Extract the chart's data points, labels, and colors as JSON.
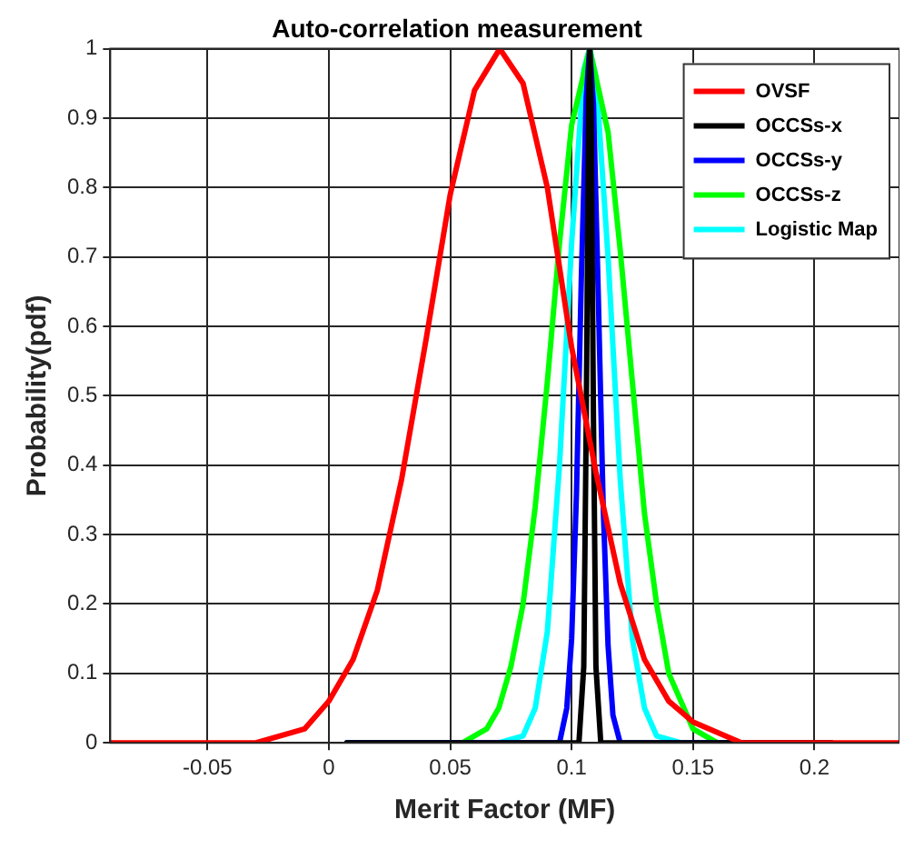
{
  "chart_data": {
    "type": "line",
    "title": "Auto-correlation measurement",
    "xlabel": "Merit Factor (MF)",
    "ylabel": "Probability(pdf)",
    "xlim": [
      -0.09,
      0.235
    ],
    "xticks": [
      -0.05,
      0,
      0.05,
      0.1,
      0.15,
      0.2
    ],
    "ylim": [
      0,
      1
    ],
    "yticks": [
      0,
      0.1,
      0.2,
      0.3,
      0.4,
      0.5,
      0.6,
      0.7,
      0.8,
      0.9,
      1
    ],
    "grid": true,
    "legend": "top right",
    "marker": "none",
    "line_style": "solid",
    "series": [
      {
        "name": "OVSF",
        "color": "#ff0000",
        "x": [
          -0.09,
          -0.05,
          -0.03,
          -0.01,
          0,
          0.01,
          0.02,
          0.03,
          0.04,
          0.05,
          0.06,
          0.0704,
          0.08,
          0.09,
          0.1,
          0.11,
          0.12,
          0.13,
          0.14,
          0.15,
          0.17,
          0.2,
          0.235
        ],
        "values": [
          0,
          0,
          0,
          0.02,
          0.06,
          0.12,
          0.22,
          0.38,
          0.58,
          0.79,
          0.94,
          1,
          0.95,
          0.8,
          0.57,
          0.39,
          0.23,
          0.12,
          0.06,
          0.03,
          0,
          0,
          0
        ]
      },
      {
        "name": "OCCSs-x",
        "color": "#000000",
        "x": [
          0.0074,
          0.103,
          0.105,
          0.106,
          0.107,
          0.1075,
          0.108,
          0.109,
          0.11,
          0.112,
          0.207
        ],
        "values": [
          0,
          0,
          0.11,
          0.46,
          0.92,
          1,
          0.92,
          0.46,
          0.11,
          0,
          0
        ]
      },
      {
        "name": "OCCSs-y",
        "color": "#0000ff",
        "x": [
          0.0074,
          0.095,
          0.098,
          0.1,
          0.102,
          0.104,
          0.106,
          0.1074,
          0.109,
          0.111,
          0.113,
          0.115,
          0.117,
          0.12,
          0.207
        ],
        "values": [
          0,
          0,
          0.05,
          0.15,
          0.36,
          0.67,
          0.93,
          1,
          0.92,
          0.64,
          0.34,
          0.14,
          0.04,
          0,
          0
        ]
      },
      {
        "name": "OCCSs-z",
        "color": "#00ff00",
        "x": [
          0.0074,
          0.055,
          0.065,
          0.07,
          0.075,
          0.08,
          0.085,
          0.09,
          0.095,
          0.1,
          0.1074,
          0.115,
          0.12,
          0.125,
          0.13,
          0.135,
          0.14,
          0.15,
          0.16,
          0.207
        ],
        "values": [
          0,
          0,
          0.02,
          0.05,
          0.11,
          0.2,
          0.34,
          0.52,
          0.72,
          0.89,
          1,
          0.88,
          0.71,
          0.52,
          0.33,
          0.2,
          0.1,
          0.02,
          0,
          0
        ]
      },
      {
        "name": "Logistic Map",
        "color": "#00ffff",
        "x": [
          0.0074,
          0.07,
          0.08,
          0.085,
          0.09,
          0.095,
          0.1,
          0.105,
          0.1074,
          0.11,
          0.115,
          0.12,
          0.125,
          0.13,
          0.135,
          0.145,
          0.207
        ],
        "values": [
          0,
          0,
          0.01,
          0.05,
          0.16,
          0.4,
          0.72,
          0.97,
          1,
          0.96,
          0.7,
          0.38,
          0.15,
          0.05,
          0.01,
          0,
          0
        ]
      }
    ]
  }
}
